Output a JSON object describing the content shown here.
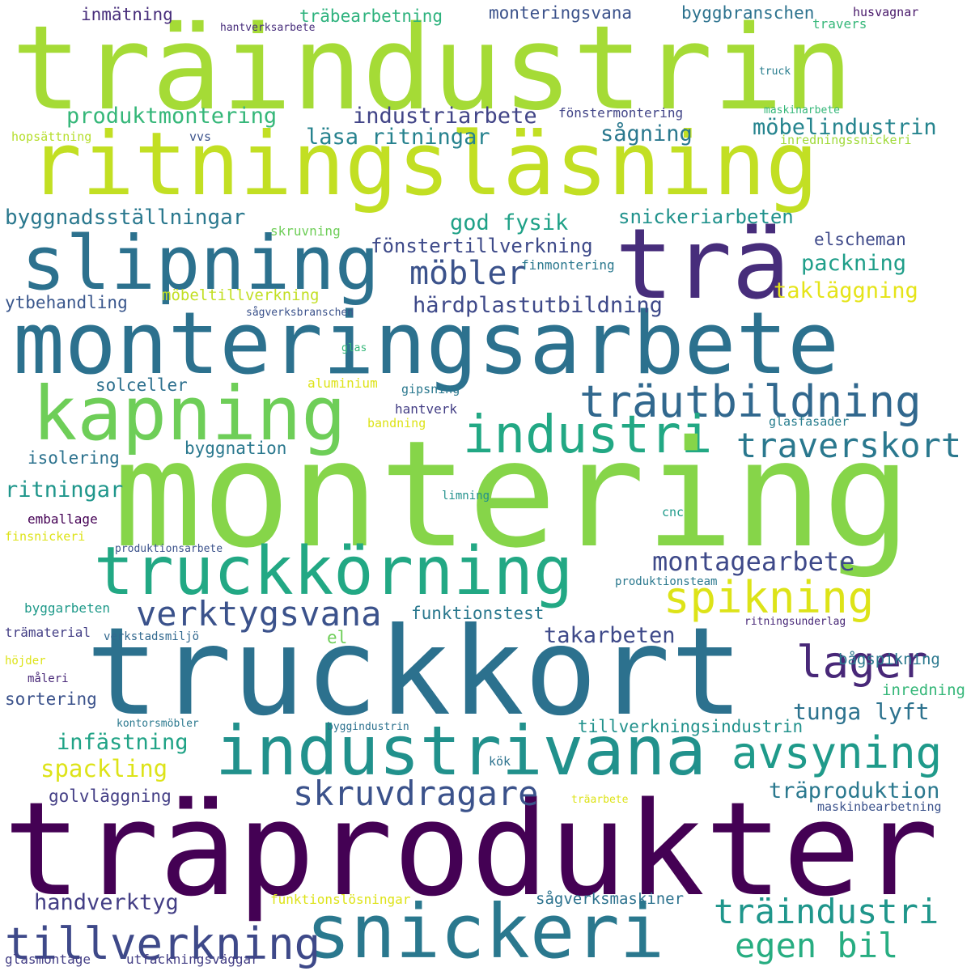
{
  "colors": {
    "background": "#ffffff",
    "yellow_green": "#a5db36",
    "lime": "#7ad151",
    "yellow": "#dde318",
    "teal_blue": "#2c718e",
    "slate_blue": "#3b528b",
    "indigo": "#472d7b",
    "dark_purple": "#440154",
    "purple": "#482878",
    "green_teal": "#22a884",
    "teal": "#21918c",
    "sea_green": "#35b779"
  },
  "words": [
    {
      "text": "träindustrin",
      "color": "#a5db36"
    },
    {
      "text": "ritningsläsning",
      "color": "#c2df23"
    },
    {
      "text": "slipning",
      "color": "#2c718e"
    },
    {
      "text": "trä",
      "color": "#472d7b"
    },
    {
      "text": "monteringsarbete",
      "color": "#2c718e"
    },
    {
      "text": "kapning",
      "color": "#6ece58"
    },
    {
      "text": "träutbildning",
      "color": "#31688e"
    },
    {
      "text": "industri",
      "color": "#22a884"
    },
    {
      "text": "traverskort",
      "color": "#2a788e"
    },
    {
      "text": "montering",
      "color": "#86d549"
    },
    {
      "text": "truckkörning",
      "color": "#22a884"
    },
    {
      "text": "montagearbete",
      "color": "#3e4989"
    },
    {
      "text": "spikning",
      "color": "#dde318"
    },
    {
      "text": "verktygsvana",
      "color": "#3b528b"
    },
    {
      "text": "lager",
      "color": "#482878"
    },
    {
      "text": "truckkort",
      "color": "#2c718e"
    },
    {
      "text": "industrivana",
      "color": "#21918c"
    },
    {
      "text": "avsyning",
      "color": "#1f9a8a"
    },
    {
      "text": "tunga lyft",
      "color": "#2c728e"
    },
    {
      "text": "träprodukter",
      "color": "#440154"
    },
    {
      "text": "snickeri",
      "color": "#2a788e"
    },
    {
      "text": "skruvdragare",
      "color": "#3b528b"
    },
    {
      "text": "tillverkning",
      "color": "#3e4989"
    },
    {
      "text": "egen bil",
      "color": "#27ad81"
    },
    {
      "text": "träindustri",
      "color": "#1f968b"
    },
    {
      "text": "inmätning",
      "color": "#472d7b"
    },
    {
      "text": "träbearbetning",
      "color": "#2db27d"
    },
    {
      "text": "monteringsvana",
      "color": "#3b528b"
    },
    {
      "text": "byggbranschen",
      "color": "#2c728e"
    },
    {
      "text": "husvagnar",
      "color": "#48186a"
    },
    {
      "text": "hantverksarbete",
      "color": "#472d7b"
    },
    {
      "text": "travers",
      "color": "#35b779"
    },
    {
      "text": "truck",
      "color": "#287d8e"
    },
    {
      "text": "produktmontering",
      "color": "#35b779"
    },
    {
      "text": "industriarbete",
      "color": "#414487"
    },
    {
      "text": "fönstermontering",
      "color": "#414487"
    },
    {
      "text": "maskinarbete",
      "color": "#35b779"
    },
    {
      "text": "hopsättning",
      "color": "#b5de2b"
    },
    {
      "text": "vvs",
      "color": "#3b528b"
    },
    {
      "text": "läsa ritningar",
      "color": "#26828e"
    },
    {
      "text": "sågning",
      "color": "#2a788e"
    },
    {
      "text": "möbelindustrin",
      "color": "#25848e"
    },
    {
      "text": "inredningssnickeri",
      "color": "#a0da39"
    },
    {
      "text": "byggnadsställningar",
      "color": "#2a788e"
    },
    {
      "text": "god fysik",
      "color": "#1fa187"
    },
    {
      "text": "snickeriarbeten",
      "color": "#20928c"
    },
    {
      "text": "möbler",
      "color": "#3b528b"
    },
    {
      "text": "fönstertillverkning",
      "color": "#3e4a89"
    },
    {
      "text": "elscheman",
      "color": "#3e4989"
    },
    {
      "text": "packning",
      "color": "#1f9e89"
    },
    {
      "text": "skruvning",
      "color": "#6ece58"
    },
    {
      "text": "finmontering",
      "color": "#2a788e"
    },
    {
      "text": "takläggning",
      "color": "#e5e419"
    },
    {
      "text": "möbeltillverkning",
      "color": "#c2df23"
    },
    {
      "text": "ytbehandling",
      "color": "#39568c"
    },
    {
      "text": "härdplastutbildning",
      "color": "#3e4989"
    },
    {
      "text": "sågverksbranschen",
      "color": "#3b528b"
    },
    {
      "text": "glas",
      "color": "#35b779"
    },
    {
      "text": "solceller",
      "color": "#2d708e"
    },
    {
      "text": "aluminium",
      "color": "#dde318"
    },
    {
      "text": "gipsning",
      "color": "#2a788e"
    },
    {
      "text": "hantverk",
      "color": "#433e85"
    },
    {
      "text": "bandning",
      "color": "#dde318"
    },
    {
      "text": "glasfasader",
      "color": "#287d8e"
    },
    {
      "text": "byggnation",
      "color": "#2a788e"
    },
    {
      "text": "isolering",
      "color": "#2c728e"
    },
    {
      "text": "ritningar",
      "color": "#1f968b"
    },
    {
      "text": "limning",
      "color": "#21918c"
    },
    {
      "text": "emballage",
      "color": "#440154"
    },
    {
      "text": "cnc",
      "color": "#1f9a8a"
    },
    {
      "text": "finsnickeri",
      "color": "#dde318"
    },
    {
      "text": "produktionsarbete",
      "color": "#3b528b"
    },
    {
      "text": "produktionsteam",
      "color": "#2a788e"
    },
    {
      "text": "byggarbeten",
      "color": "#1f9a8a"
    },
    {
      "text": "funktionstest",
      "color": "#2a788e"
    },
    {
      "text": "trämaterial",
      "color": "#433e85"
    },
    {
      "text": "verkstadsmiljö",
      "color": "#31688e"
    },
    {
      "text": "el",
      "color": "#6ece58"
    },
    {
      "text": "takarbeten",
      "color": "#3e4989"
    },
    {
      "text": "ritningsunderlag",
      "color": "#482878"
    },
    {
      "text": "bågspikning",
      "color": "#2a788e"
    },
    {
      "text": "höjder",
      "color": "#dde318"
    },
    {
      "text": "måleri",
      "color": "#482878"
    },
    {
      "text": "sortering",
      "color": "#3b528b"
    },
    {
      "text": "inredning",
      "color": "#35b779"
    },
    {
      "text": "infästning",
      "color": "#20a386"
    },
    {
      "text": "kontorsmöbler",
      "color": "#2a788e"
    },
    {
      "text": "byggindustrin",
      "color": "#2c718e"
    },
    {
      "text": "tillverkningsindustrin",
      "color": "#21918c"
    },
    {
      "text": "spackling",
      "color": "#dde318"
    },
    {
      "text": "kök",
      "color": "#2c728e"
    },
    {
      "text": "golvläggning",
      "color": "#433e85"
    },
    {
      "text": "träproduktion",
      "color": "#2a788e"
    },
    {
      "text": "träarbete",
      "color": "#dde318"
    },
    {
      "text": "maskinbearbetning",
      "color": "#3b528b"
    },
    {
      "text": "handverktyg",
      "color": "#433e85"
    },
    {
      "text": "funktionslösningar",
      "color": "#dde318"
    },
    {
      "text": "sågverksmaskiner",
      "color": "#2c728e"
    },
    {
      "text": "glasmontage",
      "color": "#433e85"
    },
    {
      "text": "utfackningsväggar",
      "color": "#433e85"
    }
  ]
}
